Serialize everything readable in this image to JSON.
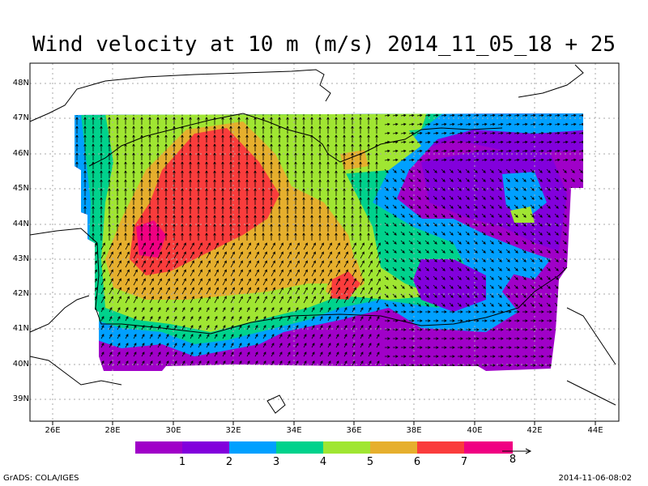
{
  "title": "Wind velocity at 10 m (m/s) 2014_11_05_18 + 25",
  "axes": {
    "lon_labels": [
      "26E",
      "28E",
      "30E",
      "32E",
      "34E",
      "36E",
      "38E",
      "40E",
      "42E",
      "44E"
    ],
    "lat_labels": [
      "48N",
      "47N",
      "46N",
      "45N",
      "44N",
      "43N",
      "42N",
      "41N",
      "40N",
      "39N"
    ]
  },
  "colorbar": {
    "labels": [
      "1",
      "2",
      "3",
      "4",
      "5",
      "6",
      "7",
      "8"
    ],
    "colors": [
      "#a000c8",
      "#8200dc",
      "#00a0ff",
      "#00d28c",
      "#a0e632",
      "#e6af2d",
      "#fa3c3c",
      "#f00082"
    ]
  },
  "footer": {
    "left": "GrADS: COLA/IGES",
    "right": "2014-11-06-08:02"
  }
}
